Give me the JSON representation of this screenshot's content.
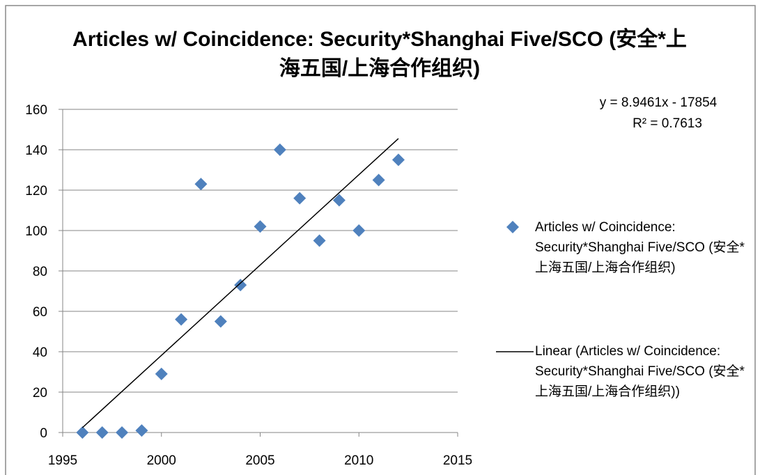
{
  "chart_data": {
    "type": "scatter",
    "title": "Articles w/ Coincidence: Security*Shanghai Five/SCO (安全*上海五国/上海合作组织)",
    "x": [
      1996,
      1997,
      1998,
      1999,
      2000,
      2001,
      2002,
      2003,
      2004,
      2005,
      2006,
      2007,
      2008,
      2009,
      2010,
      2011,
      2012
    ],
    "series": [
      {
        "name": "Articles w/ Coincidence: Security*Shanghai Five/SCO (安全*上海五国/上海合作组织)",
        "color": "#4f81bd",
        "values": [
          0,
          0,
          0,
          1,
          29,
          56,
          123,
          55,
          73,
          102,
          140,
          116,
          95,
          115,
          100,
          125,
          135
        ]
      }
    ],
    "trendline": {
      "name": "Linear (Articles w/ Coincidence: Security*Shanghai Five/SCO (安全*上海五国/上海合作组织))",
      "slope": 8.9461,
      "intercept": -17854,
      "equation": "y = 8.9461x - 17854",
      "r2": "R² = 0.7613",
      "color": "#000000"
    },
    "xlim": [
      1995,
      2015
    ],
    "xticks": [
      1995,
      2000,
      2005,
      2010,
      2015
    ],
    "ylim": [
      0,
      160
    ],
    "yticks": [
      0,
      20,
      40,
      60,
      80,
      100,
      120,
      140,
      160
    ],
    "grid": true,
    "legend": "right"
  }
}
